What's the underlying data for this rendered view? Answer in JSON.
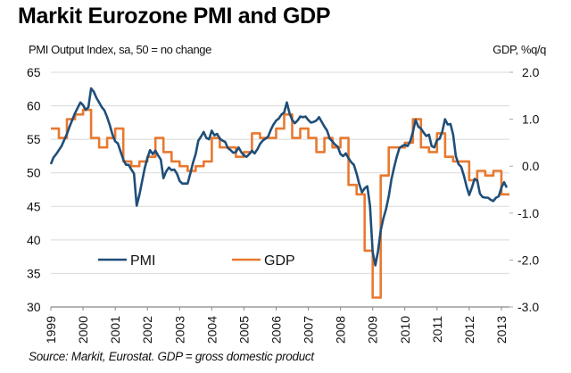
{
  "chart_data": {
    "type": "line",
    "title": "Markit Eurozone PMI and GDP",
    "ylabel_left": "PMI Output Index, sa, 50 = no change",
    "ylabel_right": "GDP, %q/q",
    "source": "Source: Markit, Eurostat. GDP = gross domestic product",
    "xlim": [
      1999,
      2013.25
    ],
    "ylim_left": [
      30,
      65
    ],
    "ylim_right": [
      -3.0,
      2.0
    ],
    "yticks_left": [
      "65",
      "60",
      "55",
      "50",
      "45",
      "40",
      "35",
      "30"
    ],
    "yticks_right": [
      "2.0",
      "1.0",
      "0.0",
      "-1.0",
      "-2.0",
      "-3.0"
    ],
    "xticks": [
      "1999",
      "2000",
      "2001",
      "2002",
      "2003",
      "2004",
      "2005",
      "2006",
      "2007",
      "2008",
      "2009",
      "2010",
      "2011",
      "2012",
      "2013"
    ],
    "grid": true,
    "legend": {
      "placement": "bottom-left",
      "entries": [
        "PMI",
        "GDP"
      ]
    },
    "series": [
      {
        "name": "PMI",
        "axis": "left",
        "color": "#1f4e79",
        "x_start": 1999.0,
        "x_step": 0.08333,
        "values": [
          51.3,
          52.3,
          52.8,
          53.4,
          54.0,
          54.9,
          55.8,
          56.9,
          57.9,
          58.9,
          59.7,
          60.5,
          60.1,
          59.4,
          59.8,
          62.6,
          62.1,
          61.2,
          60.5,
          59.8,
          59.3,
          58.3,
          57.1,
          55.7,
          54.7,
          54.4,
          53.2,
          52.0,
          51.2,
          51.2,
          50.5,
          49.9,
          45.1,
          46.7,
          48.7,
          50.7,
          52.2,
          53.4,
          52.8,
          53.3,
          52.6,
          52.0,
          49.2,
          50.2,
          50.8,
          50.4,
          50.5,
          49.9,
          48.8,
          48.4,
          48.4,
          48.4,
          49.9,
          51.5,
          52.8,
          54.8,
          55.4,
          56.1,
          55.2,
          55.0,
          56.3,
          55.6,
          55.8,
          55.1,
          54.8,
          54.6,
          53.7,
          53.4,
          53.0,
          53.1,
          53.8,
          53.1,
          52.6,
          52.4,
          52.8,
          53.3,
          52.9,
          53.5,
          54.3,
          54.8,
          55.1,
          55.4,
          56.4,
          57.2,
          57.8,
          58.1,
          58.7,
          59.0,
          60.5,
          58.9,
          57.9,
          57.4,
          57.8,
          58.4,
          58.3,
          58.4,
          57.9,
          57.5,
          57.6,
          57.8,
          58.3,
          57.6,
          56.9,
          56.3,
          55.1,
          54.7,
          54.2,
          53.9,
          52.8,
          52.5,
          52.9,
          52.2,
          51.6,
          51.2,
          49.9,
          48.3,
          47.1,
          47.7,
          48.0,
          45.1,
          38.2,
          36.2,
          38.3,
          41.4,
          43.2,
          44.6,
          46.5,
          49.0,
          50.8,
          52.4,
          53.7,
          54.0,
          54.2,
          54.0,
          54.7,
          56.1,
          57.9,
          56.9,
          56.6,
          56.0,
          55.5,
          55.7,
          54.0,
          53.8,
          54.9,
          55.1,
          56.2,
          58.0,
          57.2,
          57.3,
          55.7,
          52.5,
          51.3,
          50.9,
          49.6,
          48.0,
          46.7,
          47.8,
          49.1,
          48.9,
          46.9,
          46.4,
          46.3,
          46.3,
          46.0,
          45.8,
          46.3,
          46.5,
          47.8,
          48.6,
          47.8
        ]
      },
      {
        "name": "GDP",
        "axis": "right",
        "color": "#e8792f",
        "x_start": 1999.0,
        "x_step": 0.25,
        "values": [
          0.8,
          0.6,
          1.0,
          1.1,
          1.2,
          0.6,
          0.4,
          0.6,
          0.8,
          0.1,
          0.0,
          0.1,
          0.2,
          0.6,
          0.3,
          0.1,
          0.0,
          -0.1,
          0.0,
          0.1,
          0.6,
          0.4,
          0.4,
          0.2,
          0.3,
          0.7,
          0.6,
          0.6,
          0.8,
          1.1,
          0.6,
          0.8,
          0.6,
          0.3,
          0.6,
          0.4,
          0.6,
          -0.4,
          -0.6,
          -1.8,
          -2.8,
          -0.2,
          0.4,
          0.4,
          0.5,
          1.0,
          0.4,
          0.3,
          0.7,
          0.2,
          0.1,
          0.1,
          -0.3,
          -0.1,
          -0.2,
          -0.1,
          -0.6
        ]
      }
    ]
  }
}
